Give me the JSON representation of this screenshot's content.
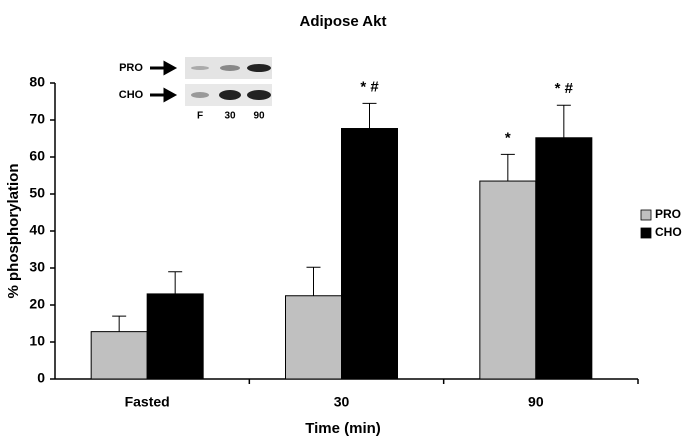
{
  "chart_data": {
    "type": "bar",
    "title": "Adipose Akt",
    "x_label": "Time (min)",
    "y_label": "% phosphorylation",
    "categories": [
      "Fasted",
      "30",
      "90"
    ],
    "series": [
      {
        "name": "PRO",
        "color": "#c0c0c0",
        "values": [
          12.8,
          22.5,
          53.5
        ],
        "errors": [
          4.2,
          7.7,
          7.2
        ],
        "annotations": [
          null,
          null,
          "*"
        ]
      },
      {
        "name": "CHO",
        "color": "#000000",
        "values": [
          23,
          67.7,
          65.2
        ],
        "errors": [
          6,
          6.8,
          8.8
        ],
        "annotations": [
          null,
          "* #",
          "* #"
        ]
      }
    ],
    "ylim": [
      0,
      80
    ],
    "yticks": [
      0,
      10,
      20,
      30,
      40,
      50,
      60,
      70,
      80
    ],
    "legend": "right",
    "inset": {
      "rows": [
        "PRO",
        "CHO"
      ],
      "lanes": [
        "F",
        "30",
        "90"
      ]
    }
  }
}
